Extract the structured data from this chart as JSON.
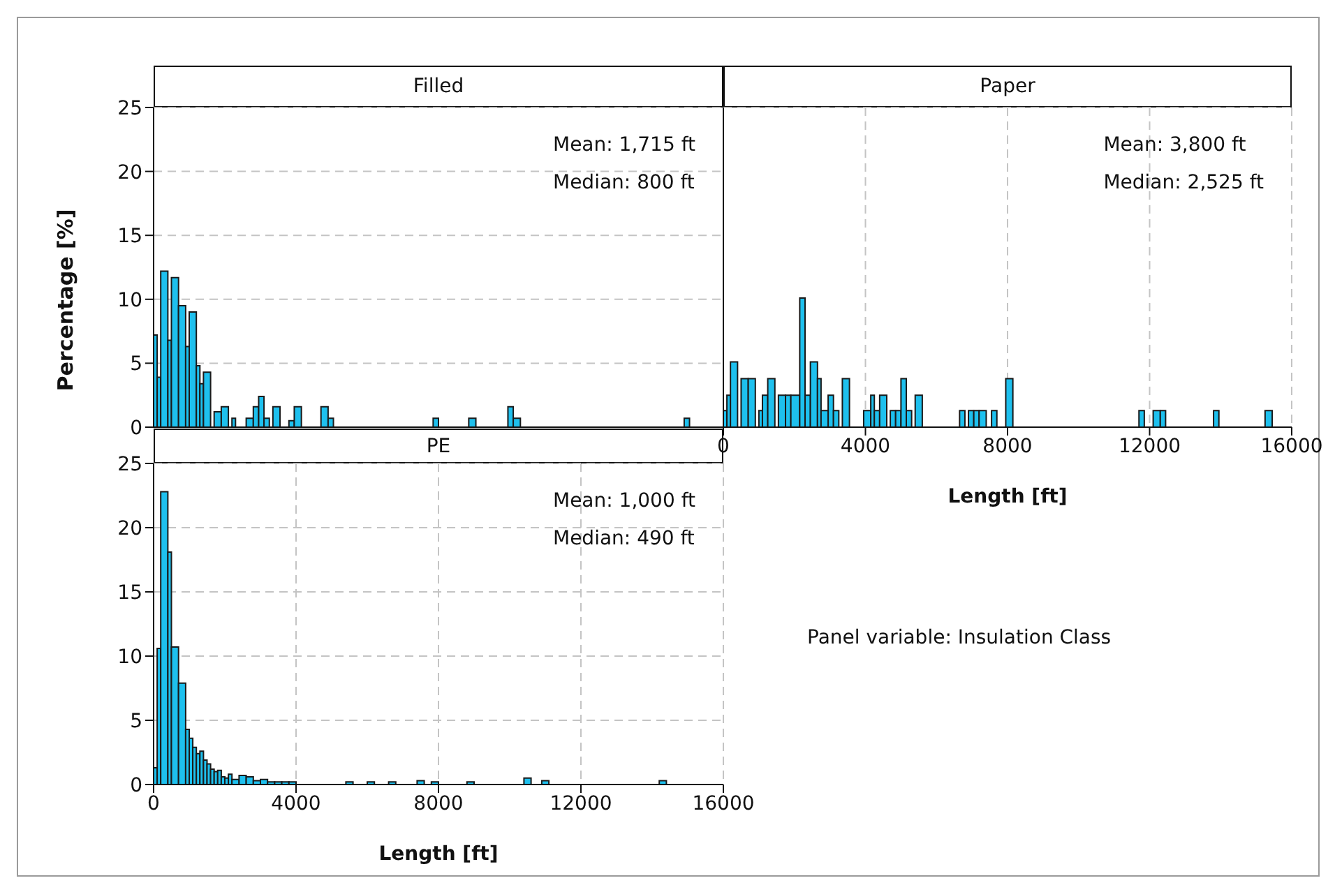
{
  "chart_data": [
    {
      "type": "histogram",
      "title": "Filled",
      "ylabel": "Percentage [%]",
      "color": "#1ec0ee",
      "grid": true,
      "tick_labels": "y",
      "xlim": [
        0,
        16000
      ],
      "xticks": [
        0,
        4000,
        8000,
        12000,
        16000
      ],
      "ylim": [
        0,
        25
      ],
      "yticks": [
        0,
        5,
        10,
        15,
        20,
        25
      ],
      "annotations": [
        "Mean: 1,715 ft",
        "Median: 800 ft"
      ],
      "bins": [
        0,
        100,
        200,
        400,
        500,
        700,
        900,
        1000,
        1200,
        1300,
        1400,
        1600,
        1700,
        1900,
        2100,
        2200,
        2300,
        2600,
        2800,
        2950,
        3100,
        3250,
        3350,
        3550,
        3800,
        3950,
        4150,
        4700,
        4900,
        5050,
        7850,
        8000,
        8850,
        9050,
        9950,
        10100,
        10300,
        14900,
        15050
      ],
      "values": [
        7.2,
        3.9,
        12.2,
        6.8,
        11.7,
        9.5,
        6.3,
        9.0,
        4.8,
        3.4,
        4.3,
        0,
        1.2,
        1.6,
        0,
        0.7,
        0,
        0.7,
        1.6,
        2.4,
        0.7,
        0,
        1.6,
        0,
        0.5,
        1.6,
        0,
        1.6,
        0.7,
        0,
        0.7,
        0,
        0.7,
        0,
        1.6,
        0.7,
        0,
        0.7
      ]
    },
    {
      "type": "histogram",
      "title": "Paper",
      "xlabel": "Length [ft]",
      "color": "#1ec0ee",
      "grid": true,
      "tick_labels": "x",
      "xlim": [
        0,
        16000
      ],
      "xticks": [
        0,
        4000,
        8000,
        12000,
        16000
      ],
      "ylim": [
        0,
        25
      ],
      "yticks": [
        0,
        5,
        10,
        15,
        20,
        25
      ],
      "annotations": [
        "Mean: 3,800 ft",
        "Median: 2,525 ft"
      ],
      "bins": [
        0,
        100,
        200,
        400,
        500,
        700,
        900,
        1000,
        1100,
        1250,
        1450,
        1550,
        1750,
        1900,
        2150,
        2300,
        2450,
        2650,
        2750,
        2950,
        3100,
        3250,
        3350,
        3550,
        3950,
        4150,
        4250,
        4400,
        4600,
        4700,
        4850,
        5000,
        5150,
        5300,
        5400,
        5600,
        6650,
        6800,
        6900,
        7050,
        7200,
        7400,
        7550,
        7700,
        7950,
        8150,
        11700,
        11850,
        12100,
        12300,
        12450,
        13800,
        13950,
        15250,
        15450
      ],
      "values": [
        1.3,
        2.5,
        5.1,
        0,
        3.8,
        3.8,
        0,
        1.3,
        2.5,
        3.8,
        0,
        2.5,
        2.5,
        2.5,
        10.1,
        2.5,
        5.1,
        3.8,
        1.3,
        2.5,
        1.3,
        0,
        3.8,
        0,
        1.3,
        2.5,
        1.3,
        2.5,
        0,
        1.3,
        1.3,
        3.8,
        1.3,
        0,
        2.5,
        0,
        1.3,
        0,
        1.3,
        1.3,
        1.3,
        0,
        1.3,
        0,
        3.8,
        0,
        1.3,
        0,
        1.3,
        1.3,
        0,
        1.3,
        0,
        1.3
      ]
    },
    {
      "type": "histogram",
      "title": "PE",
      "xlabel": "Length [ft]",
      "color": "#1ec0ee",
      "grid": true,
      "xlim": [
        0,
        16000
      ],
      "xticks": [
        0,
        4000,
        8000,
        12000,
        16000
      ],
      "ylim": [
        0,
        25
      ],
      "yticks": [
        0,
        5,
        10,
        15,
        20,
        25
      ],
      "annotations": [
        "Mean: 1,000 ft",
        "Median: 490 ft",
        "Panel variable: Insulation Class"
      ],
      "bins": [
        0,
        100,
        200,
        400,
        500,
        700,
        900,
        1000,
        1100,
        1200,
        1300,
        1400,
        1500,
        1600,
        1700,
        1800,
        1900,
        2000,
        2100,
        2200,
        2400,
        2600,
        2800,
        3000,
        3200,
        3400,
        3600,
        3800,
        4000,
        5400,
        5600,
        6000,
        6200,
        6600,
        6800,
        7400,
        7600,
        7800,
        8000,
        8800,
        9000,
        10400,
        10600,
        10900,
        11100,
        14200,
        14400
      ],
      "values": [
        1.3,
        10.6,
        22.8,
        18.1,
        10.7,
        7.9,
        4.3,
        3.6,
        2.9,
        2.4,
        2.6,
        1.9,
        1.6,
        1.2,
        1.0,
        1.1,
        0.6,
        0.5,
        0.8,
        0.4,
        0.7,
        0.6,
        0.3,
        0.4,
        0.2,
        0.2,
        0.2,
        0.2,
        0,
        0.2,
        0,
        0.2,
        0,
        0.2,
        0,
        0.3,
        0,
        0.2,
        0,
        0.2,
        0,
        0.5,
        0,
        0.3,
        0,
        0.3
      ]
    }
  ]
}
